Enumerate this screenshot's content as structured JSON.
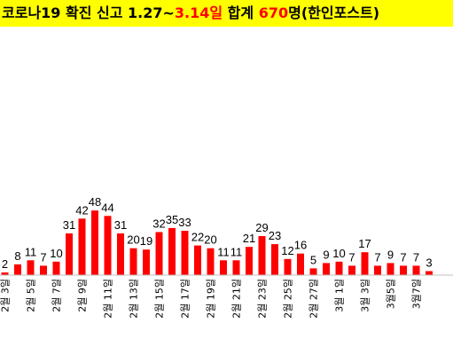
{
  "title": {
    "parts": [
      {
        "text": "코로나19 확진 신고 1.27~",
        "accent": false
      },
      {
        "text": "3.14일",
        "accent": true
      },
      {
        "text": " 합계 ",
        "accent": false
      },
      {
        "text": "670",
        "accent": true
      },
      {
        "text": "명(한인포스트)",
        "accent": false
      }
    ]
  },
  "colors": {
    "bar": "#ff0000",
    "title_bg": "#ffff00",
    "accent": "#ff0000"
  },
  "chart_data": {
    "type": "bar",
    "title": "코로나19 확진 신고 1.27~3.14일 합계 670명(한인포스트)",
    "values": [
      2,
      8,
      11,
      7,
      10,
      31,
      42,
      48,
      44,
      31,
      20,
      19,
      32,
      35,
      33,
      22,
      20,
      11,
      11,
      21,
      29,
      23,
      12,
      16,
      5,
      9,
      10,
      7,
      17,
      7,
      9,
      7,
      7,
      3
    ],
    "tick_labels": [
      "2월 3일",
      "2월 5일",
      "2월 7일",
      "2월 9일",
      "2월 11일",
      "2월 13일",
      "2월 15일",
      "2월 17일",
      "2월 19일",
      "2월 21일",
      "2월 23일",
      "2월 25일",
      "2월 27일",
      "3월 1일",
      "3월 3일",
      "3월5일",
      "3월7일"
    ],
    "ylim": [
      0,
      55
    ],
    "data_labels": true,
    "grid": false,
    "legend": "none"
  }
}
